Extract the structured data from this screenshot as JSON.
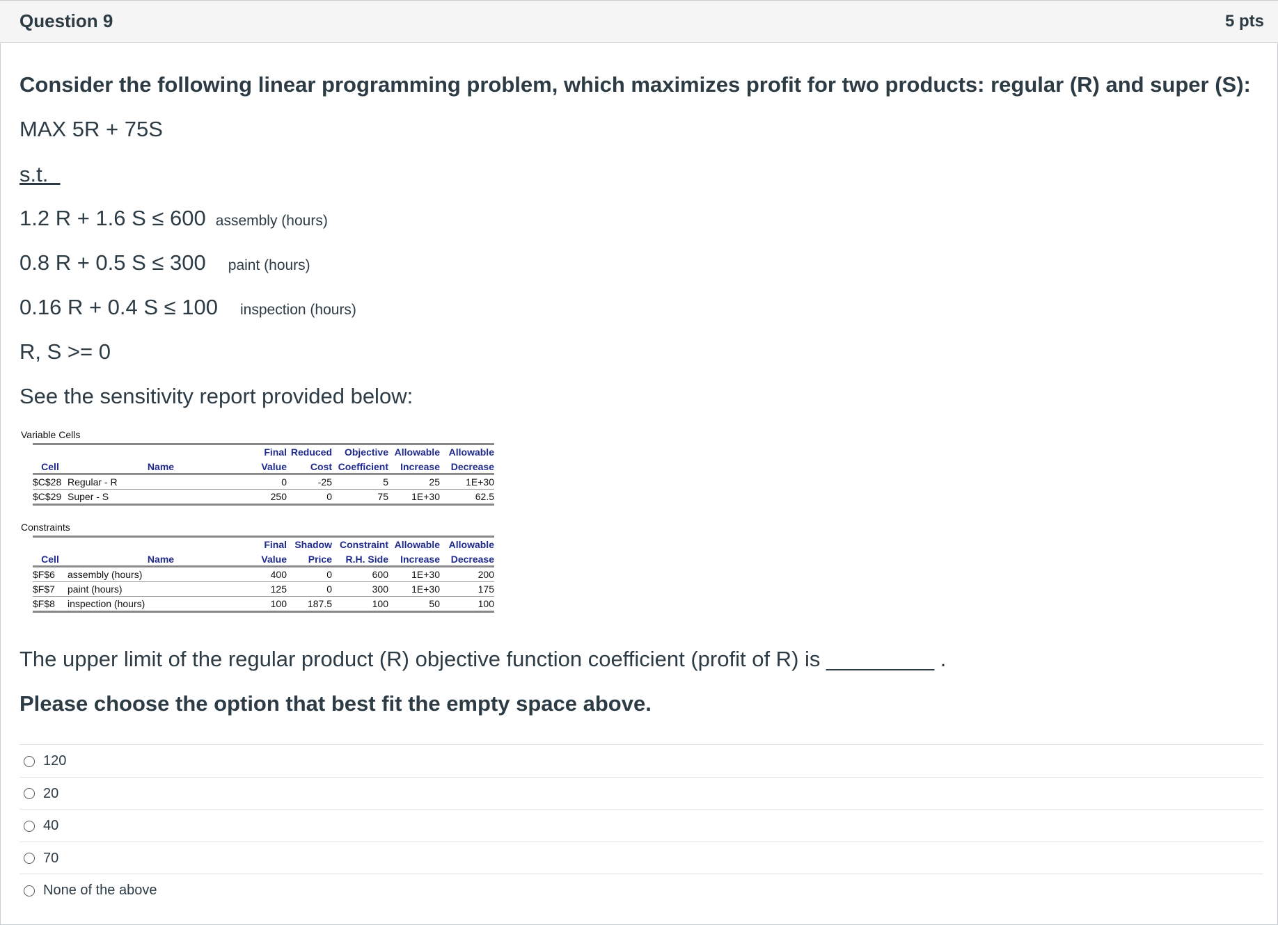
{
  "question": {
    "title": "Question 9",
    "points": "5 pts"
  },
  "body": {
    "intro": "Consider the following linear programming problem, which maximizes profit for two products: regular (R) and super (S):",
    "objective": "MAX 5R + 75S",
    "st": "s.t.  ",
    "constraints": [
      {
        "expr": "1.2 R + 1.6 S ≤ 600",
        "label": "assembly (hours)"
      },
      {
        "expr": "0.8 R + 0.5 S ≤ 300",
        "label": "paint (hours)"
      },
      {
        "expr": "0.16 R + 0.4 S ≤ 100",
        "label": "inspection (hours)"
      }
    ],
    "nonneg": "R, S  >= 0",
    "see": "See the sensitivity report provided below:",
    "prompt": "The upper limit of the regular product (R) objective function coefficient (profit of R) is _________ .",
    "instruction": "Please choose the option that best fit the empty space above."
  },
  "variable_cells": {
    "caption": "Variable Cells",
    "header1": [
      "",
      "",
      "Final",
      "Reduced",
      "Objective",
      "Allowable",
      "Allowable"
    ],
    "header2": [
      "Cell",
      "Name",
      "Value",
      "Cost",
      "Coefficient",
      "Increase",
      "Decrease"
    ],
    "rows": [
      [
        "$C$28",
        "Regular - R",
        "0",
        "-25",
        "5",
        "25",
        "1E+30"
      ],
      [
        "$C$29",
        "Super - S",
        "250",
        "0",
        "75",
        "1E+30",
        "62.5"
      ]
    ]
  },
  "constraints_table": {
    "caption": "Constraints",
    "header1": [
      "",
      "",
      "Final",
      "Shadow",
      "Constraint",
      "Allowable",
      "Allowable"
    ],
    "header2": [
      "Cell",
      "Name",
      "Value",
      "Price",
      "R.H. Side",
      "Increase",
      "Decrease"
    ],
    "rows": [
      [
        "$F$6",
        "assembly (hours)",
        "400",
        "0",
        "600",
        "1E+30",
        "200"
      ],
      [
        "$F$7",
        "paint (hours)",
        "125",
        "0",
        "300",
        "1E+30",
        "175"
      ],
      [
        "$F$8",
        "inspection (hours)",
        "100",
        "187.5",
        "100",
        "50",
        "100"
      ]
    ]
  },
  "options": [
    "120",
    "20",
    "40",
    "70",
    "None of the above"
  ],
  "colors": {
    "header_bg": "#f5f5f5",
    "table_header": "#1f2a8f",
    "text": "#2d3b45"
  }
}
